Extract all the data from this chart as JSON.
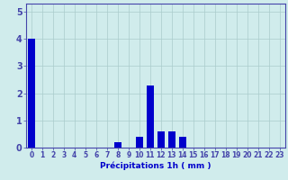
{
  "title": "",
  "xlabel": "Précipitations 1h ( mm )",
  "ylabel": "",
  "xlim": [
    -0.5,
    23.5
  ],
  "ylim": [
    0,
    5.3
  ],
  "yticks": [
    0,
    1,
    2,
    3,
    4,
    5
  ],
  "xticks": [
    0,
    1,
    2,
    3,
    4,
    5,
    6,
    7,
    8,
    9,
    10,
    11,
    12,
    13,
    14,
    15,
    16,
    17,
    18,
    19,
    20,
    21,
    22,
    23
  ],
  "hours": [
    0,
    1,
    2,
    3,
    4,
    5,
    6,
    7,
    8,
    9,
    10,
    11,
    12,
    13,
    14,
    15,
    16,
    17,
    18,
    19,
    20,
    21,
    22,
    23
  ],
  "values": [
    4.0,
    0,
    0,
    0,
    0,
    0,
    0,
    0,
    0.2,
    0,
    0.4,
    2.3,
    0.6,
    0.6,
    0.4,
    0,
    0,
    0,
    0,
    0,
    0,
    0,
    0,
    0
  ],
  "bar_color": "#0000cc",
  "bg_color": "#d0ecec",
  "grid_color": "#aacccc",
  "axis_color": "#4444aa",
  "tick_label_color": "#0000cc",
  "xlabel_color": "#0000cc",
  "xlabel_fontsize": 6.5,
  "tick_fontsize": 5.5,
  "ytick_fontsize": 7.0
}
